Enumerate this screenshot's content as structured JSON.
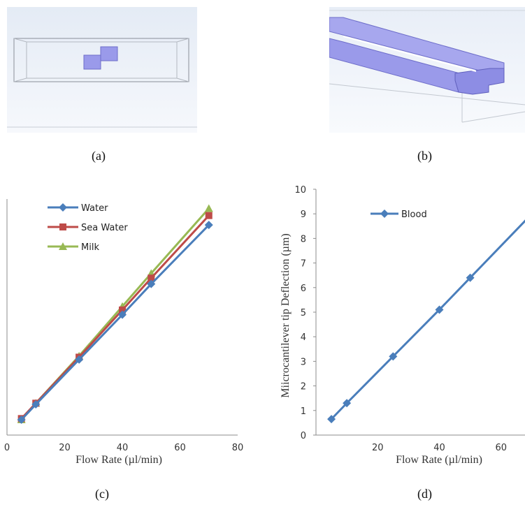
{
  "captions": {
    "a": "(a)",
    "b": "(b)",
    "c": "(c)",
    "d": "(d)"
  },
  "colors": {
    "water": "#4a7ebb",
    "sea_water": "#be4b48",
    "milk": "#98b954",
    "blood": "#4a7ebb",
    "geometry": "#8c8ce6"
  },
  "chart_data": [
    {
      "type": "line",
      "xlabel": "Flow Rate (µl/min)",
      "ylabel": "",
      "x_ticks": [
        "0",
        "20",
        "40",
        "60",
        "80"
      ],
      "xlim": [
        0,
        80
      ],
      "ylim": [
        0,
        10
      ],
      "legend_position": "top-left",
      "x": [
        5,
        10,
        25,
        40,
        50,
        70
      ],
      "series": [
        {
          "name": "Water",
          "marker": "diamond",
          "values": [
            0.65,
            1.3,
            3.2,
            5.1,
            6.4,
            8.9
          ]
        },
        {
          "name": "Sea Water",
          "marker": "square",
          "values": [
            0.7,
            1.35,
            3.3,
            5.3,
            6.65,
            9.3
          ]
        },
        {
          "name": "Milk",
          "marker": "triangle",
          "values": [
            0.65,
            1.35,
            3.35,
            5.45,
            6.85,
            9.6
          ]
        }
      ]
    },
    {
      "type": "line",
      "xlabel": "Flow Rate (µl/min)",
      "ylabel": "Miicrocantilever tip Deflection (µm)",
      "x_ticks": [
        "20",
        "40",
        "60"
      ],
      "y_ticks": [
        "0",
        "1",
        "2",
        "3",
        "4",
        "5",
        "6",
        "7",
        "8",
        "9",
        "10"
      ],
      "xlim": [
        0,
        80
      ],
      "ylim": [
        0,
        10
      ],
      "legend_position": "top-left",
      "x": [
        5,
        10,
        25,
        40,
        50
      ],
      "series": [
        {
          "name": "Blood",
          "marker": "diamond",
          "values": [
            0.65,
            1.3,
            3.2,
            5.1,
            6.4
          ]
        }
      ]
    }
  ]
}
